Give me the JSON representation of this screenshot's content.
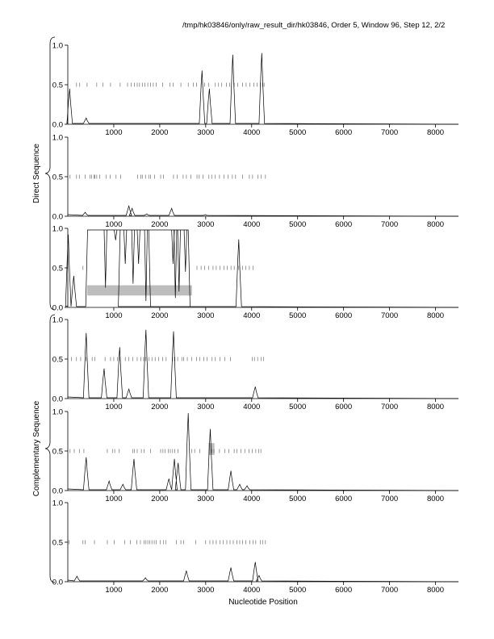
{
  "header": {
    "title": "/tmp/hk03846/only/raw_result_dir/hk03846, Order 5, Window 96, Step 12, 2/2"
  },
  "chart_data": {
    "type": "line",
    "title": "/tmp/hk03846/only/raw_result_dir/hk03846, Order 5, Window 96, Step 12, 2/2",
    "xlabel": "Nucleotide Position",
    "xlim": [
      0,
      8500
    ],
    "ylim": [
      0,
      1
    ],
    "x_ticks": [
      "1000",
      "2000",
      "3000",
      "4000",
      "5000",
      "6000",
      "7000",
      "8000"
    ],
    "y_ticks": [
      "0.0",
      "0.5",
      "1.0"
    ],
    "groups": [
      {
        "label": "Direct Sequence",
        "panels": [
          0,
          1,
          2
        ]
      },
      {
        "label": "Complementary Sequence",
        "panels": [
          3,
          4,
          5
        ]
      }
    ],
    "panels": [
      {
        "peaks": [
          [
            40,
            0.45
          ],
          [
            400,
            0.08
          ],
          [
            2920,
            0.68
          ],
          [
            3080,
            0.45
          ],
          [
            3590,
            0.88
          ],
          [
            4220,
            0.9
          ]
        ],
        "ticks_05": [
          190,
          260,
          420,
          630,
          760,
          930,
          1140,
          1300,
          1380,
          1450,
          1510,
          1560,
          1620,
          1680,
          1740,
          1800,
          1860,
          1920,
          2060,
          2220,
          2290,
          2460,
          2620,
          2730,
          2800,
          2900,
          2980,
          3060,
          3210,
          3280,
          3350,
          3450,
          3520,
          3620,
          3700,
          3800,
          3880,
          3960,
          4050,
          4120,
          4190,
          4240,
          4270
        ],
        "boxes": []
      },
      {
        "peaks": [
          [
            380,
            0.05
          ],
          [
            1330,
            0.13
          ],
          [
            1400,
            0.1
          ],
          [
            1720,
            0.03
          ],
          [
            2260,
            0.1
          ],
          [
            3000,
            0.02
          ]
        ],
        "ticks_05": [
          50,
          190,
          250,
          380,
          480,
          520,
          570,
          590,
          630,
          690,
          830,
          920,
          1050,
          1150,
          1520,
          1590,
          1620,
          1690,
          1760,
          1800,
          1890,
          2020,
          2080,
          2300,
          2380,
          2510,
          2580,
          2680,
          2810,
          2860,
          2940,
          3070,
          3130,
          3210,
          3300,
          3400,
          3490,
          3580,
          3650,
          3800,
          3950,
          4020,
          4140,
          4210,
          4300
        ],
        "boxes": []
      },
      {
        "peaks": [
          [
            10,
            0.92
          ],
          [
            130,
            0.4
          ]
        ],
        "plateaus": [
          [
            430,
            0.98,
            2620
          ],
          [
            1140,
            0.98,
            1760
          ]
        ],
        "dips": [
          [
            820,
            0.25
          ],
          [
            1040,
            0.85
          ],
          [
            1250,
            0.55
          ],
          [
            1420,
            0.3
          ],
          [
            1540,
            0.55
          ],
          [
            1700,
            0.08
          ],
          [
            2290,
            0.55
          ],
          [
            2340,
            0.12
          ],
          [
            2420,
            0.2
          ],
          [
            2560,
            0.45
          ]
        ],
        "peaks_after": [
          [
            3720,
            0.86
          ]
        ],
        "ticks_05": [
          330,
          2810,
          2900,
          2980,
          3060,
          3160,
          3230,
          3310,
          3400,
          3470,
          3550,
          3620,
          3720,
          3800,
          3870,
          3950,
          4030
        ],
        "boxes": [
          [
            420,
            0.15,
            2700,
            0.28
          ]
        ]
      },
      {
        "peaks": [
          [
            400,
            0.83
          ],
          [
            790,
            0.38
          ],
          [
            1130,
            0.65
          ],
          [
            1330,
            0.12
          ],
          [
            1700,
            0.87
          ],
          [
            2300,
            0.85
          ],
          [
            4080,
            0.15
          ]
        ],
        "ticks_05": [
          80,
          190,
          280,
          400,
          530,
          590,
          810,
          930,
          1000,
          1080,
          1140,
          1250,
          1330,
          1410,
          1510,
          1590,
          1650,
          1700,
          1770,
          1830,
          1900,
          1980,
          2060,
          2140,
          2280,
          2330,
          2390,
          2480,
          2520,
          2600,
          2700,
          2800,
          2870,
          2960,
          3030,
          3140,
          3210,
          3310,
          3420,
          3540,
          4010,
          4060,
          4130,
          4210,
          4260
        ],
        "boxes": []
      },
      {
        "peaks": [
          [
            400,
            0.42
          ],
          [
            900,
            0.12
          ],
          [
            1200,
            0.08
          ],
          [
            1440,
            0.4
          ],
          [
            2200,
            0.15
          ],
          [
            2320,
            0.4
          ],
          [
            2400,
            0.35
          ],
          [
            2620,
            0.98
          ],
          [
            3100,
            0.78
          ],
          [
            3550,
            0.25
          ],
          [
            3740,
            0.08
          ],
          [
            3900,
            0.06
          ]
        ],
        "ticks_05": [
          50,
          140,
          250,
          350,
          860,
          970,
          1020,
          1120,
          1410,
          1450,
          1510,
          1600,
          1660,
          1800,
          2020,
          2070,
          2120,
          2190,
          2230,
          2280,
          2330,
          2400,
          2700,
          2760,
          2870,
          3130,
          3180,
          3300,
          3420,
          3500,
          3620,
          3680,
          3770,
          3850,
          3940,
          4010,
          4090,
          4150,
          4200
        ],
        "boxes": [
          [
            3060,
            0.45,
            3190,
            0.6
          ]
        ]
      },
      {
        "peaks": [
          [
            200,
            0.07
          ],
          [
            1690,
            0.05
          ],
          [
            2580,
            0.14
          ],
          [
            3550,
            0.18
          ],
          [
            4080,
            0.25
          ],
          [
            4160,
            0.08
          ]
        ],
        "ticks_05": [
          30,
          330,
          380,
          580,
          860,
          1010,
          1240,
          1360,
          1500,
          1580,
          1660,
          1700,
          1740,
          1780,
          1830,
          1880,
          1920,
          2010,
          2080,
          2130,
          2360,
          2460,
          2520,
          2780,
          3000,
          3090,
          3160,
          3230,
          3310,
          3380,
          3460,
          3530,
          3600,
          3680,
          3740,
          3800,
          3870,
          3960,
          4030,
          4090,
          4190,
          4240,
          4300
        ],
        "boxes": []
      }
    ]
  }
}
